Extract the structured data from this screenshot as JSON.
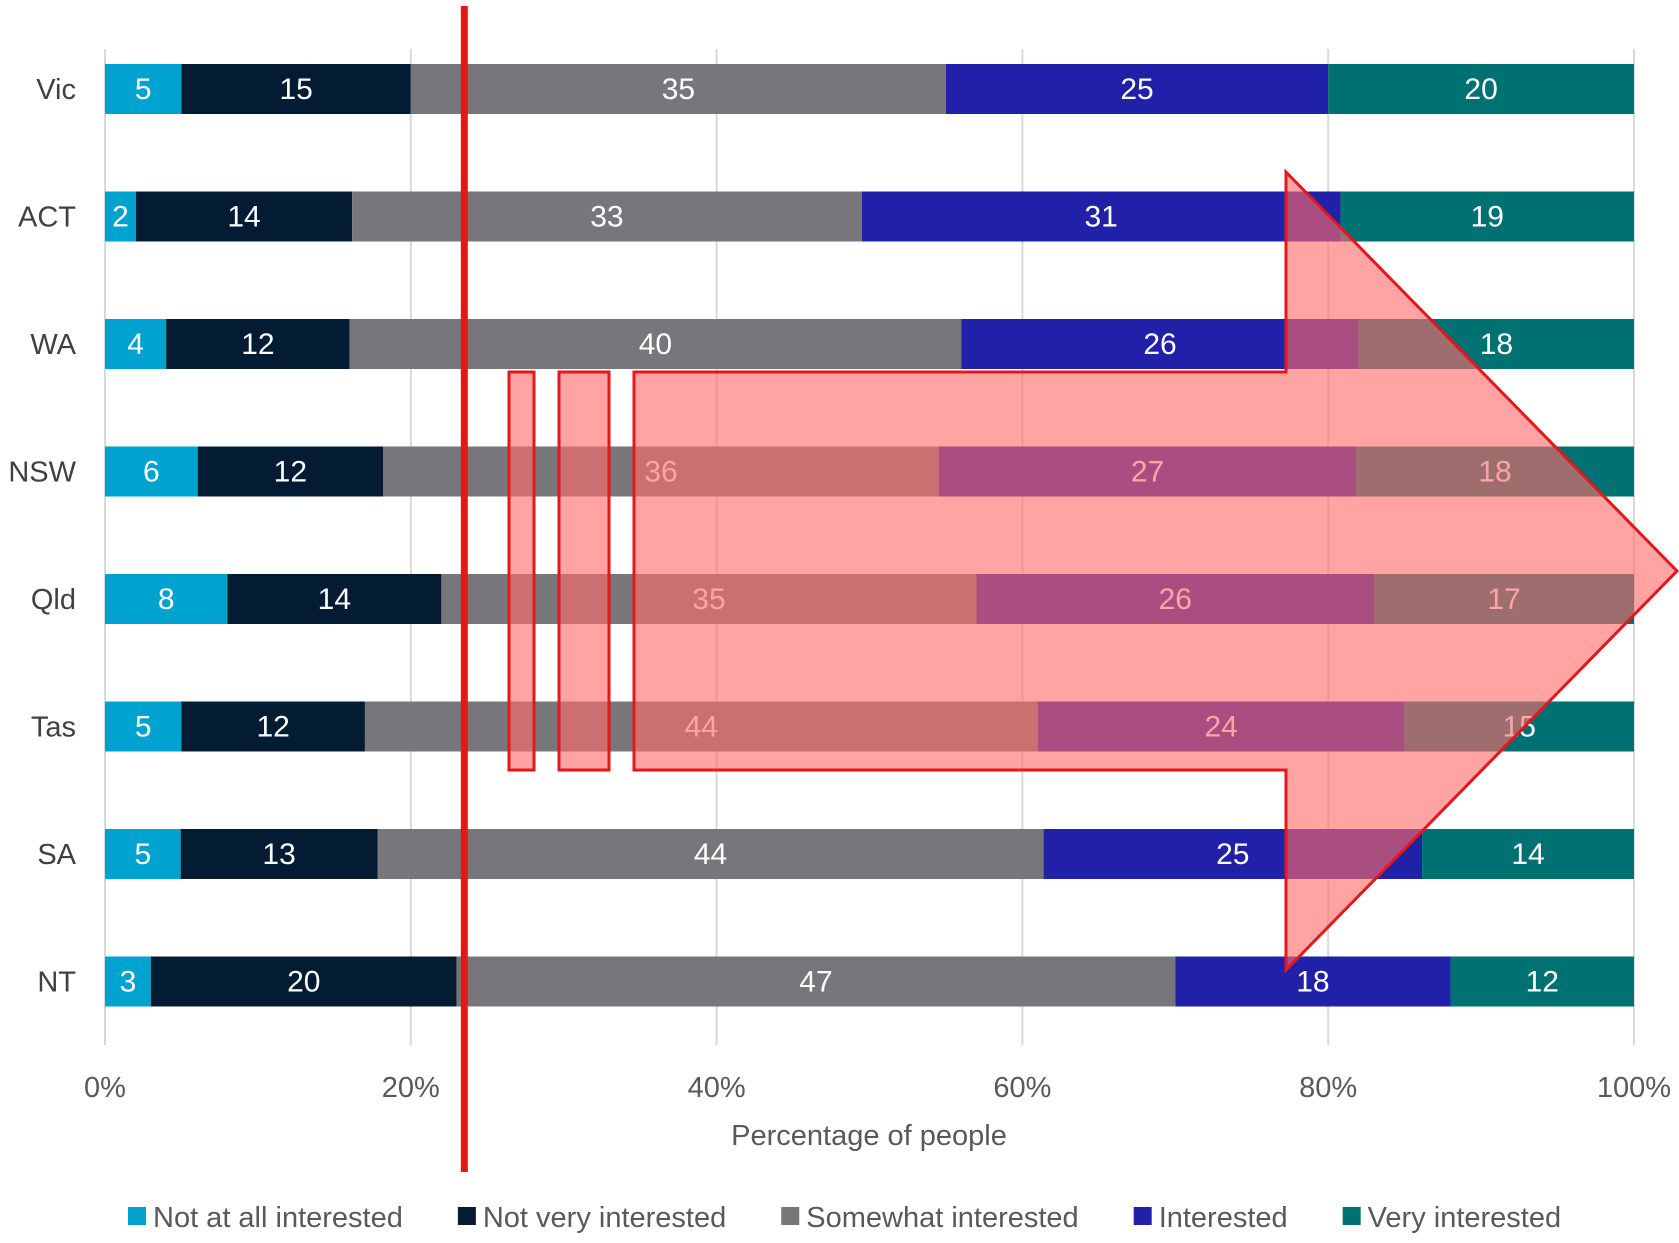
{
  "chart_data": {
    "type": "bar",
    "orientation": "horizontal",
    "stacked": true,
    "normalized": true,
    "title": "",
    "xlabel": "Percentage of people",
    "ylabel": "",
    "xlim": [
      0,
      100
    ],
    "x_ticks": [
      "0%",
      "20%",
      "40%",
      "60%",
      "80%",
      "100%"
    ],
    "grid": true,
    "legend_position": "bottom",
    "categories": [
      "Vic",
      "ACT",
      "WA",
      "NSW",
      "Qld",
      "Tas",
      "SA",
      "NT"
    ],
    "series": [
      {
        "name": "Not at all interested",
        "color": "#00a2cf",
        "values": [
          5,
          2,
          4,
          6,
          8,
          5,
          5,
          3
        ]
      },
      {
        "name": "Not very interested",
        "color": "#041c33",
        "values": [
          15,
          14,
          12,
          12,
          14,
          12,
          13,
          20
        ]
      },
      {
        "name": "Somewhat interested",
        "color": "#77777b",
        "values": [
          35,
          33,
          40,
          36,
          35,
          44,
          44,
          47
        ]
      },
      {
        "name": "Interested",
        "color": "#2020a8",
        "values": [
          25,
          31,
          26,
          27,
          26,
          24,
          25,
          18
        ]
      },
      {
        "name": "Very interested",
        "color": "#007172",
        "values": [
          20,
          19,
          18,
          18,
          17,
          15,
          14,
          12
        ]
      }
    ],
    "annotations": [
      {
        "type": "vertical-line",
        "x": 23.5,
        "color": "#e4171b"
      },
      {
        "type": "block-arrow",
        "direction": "right",
        "color": "#ff6b6b",
        "outline": "#e4171b"
      }
    ]
  }
}
